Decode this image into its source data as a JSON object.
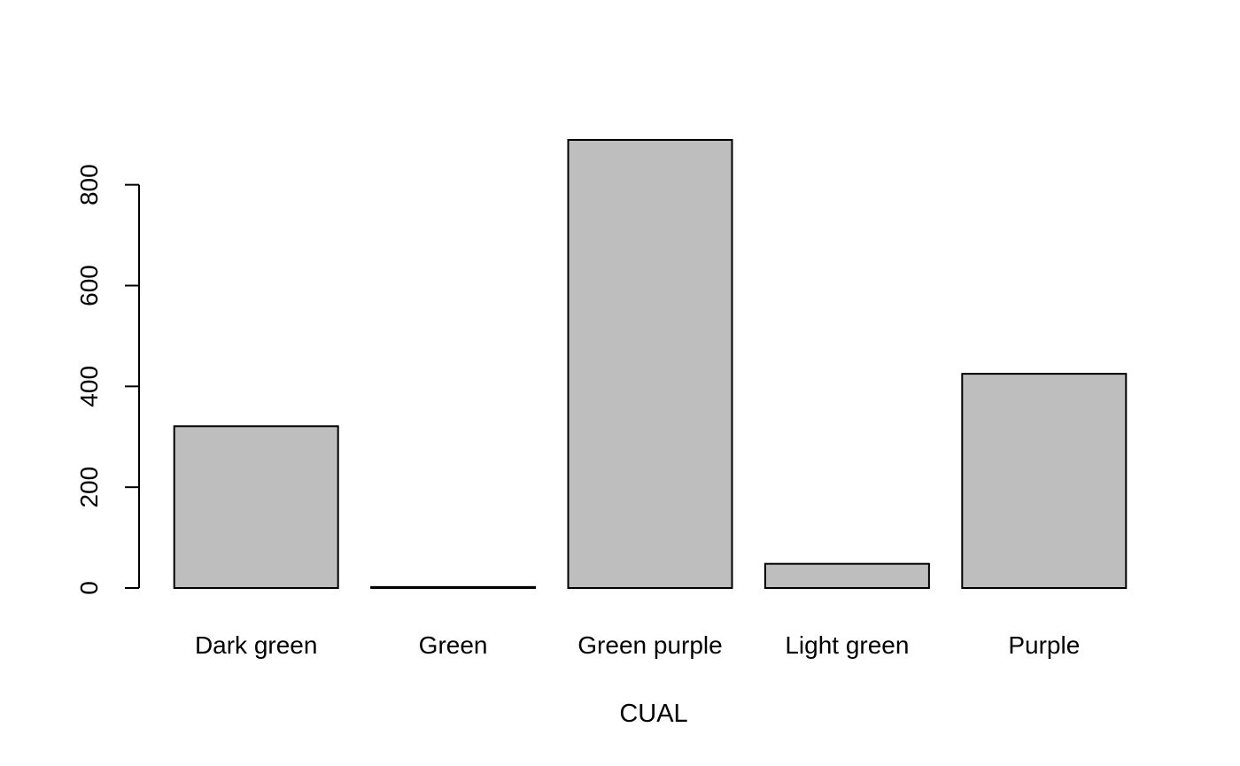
{
  "chart_data": {
    "type": "bar",
    "title": "",
    "xlabel": "CUAL",
    "ylabel": "",
    "categories": [
      "Dark green",
      "Green",
      "Green purple",
      "Light green",
      "Purple"
    ],
    "values": [
      321,
      2,
      889,
      48,
      425
    ],
    "ylim": [
      0,
      889
    ],
    "yticks": [
      0,
      200,
      400,
      600,
      800
    ],
    "ytick_labels": [
      "0",
      "200",
      "400",
      "600",
      "800"
    ],
    "bar_fill": "#bebebe",
    "bar_stroke": "#000000",
    "grid": false,
    "legend": "none"
  }
}
